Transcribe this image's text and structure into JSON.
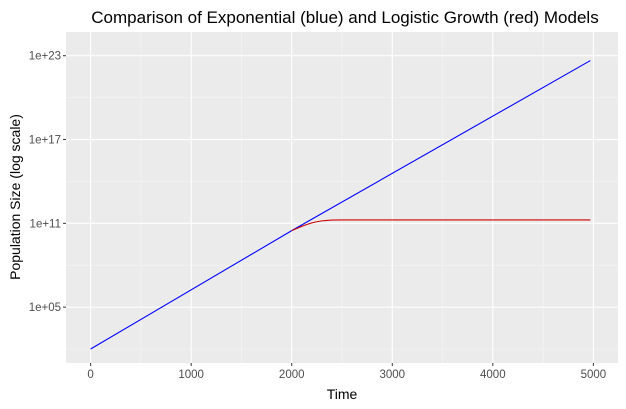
{
  "chart_data": {
    "type": "line",
    "title": "Comparison of Exponential (blue) and Logistic Growth (red) Models",
    "xlabel": "Time",
    "ylabel": "Population Size (log scale)",
    "y_scale": "log10",
    "xlim": [
      -245,
      5245
    ],
    "ylim": [
      10,
      5e+24
    ],
    "x_ticks": [
      0,
      1000,
      2000,
      3000,
      4000,
      5000
    ],
    "x_tick_labels": [
      "0",
      "1000",
      "2000",
      "3000",
      "4000",
      "5000"
    ],
    "y_ticks": [
      100000,
      100000000000,
      100000000000000000,
      1e+23
    ],
    "y_tick_labels": [
      "1e+05",
      "1e+11",
      "1e+17",
      "1e+23"
    ],
    "grid": true,
    "background": "#ebebeb",
    "series": [
      {
        "color": "#0000ff",
        "points": [
          [
            0,
            100
          ],
          [
            2000,
            30000000000.0
          ],
          [
            4970,
            4.5e+22
          ]
        ]
      },
      {
        "color": "#cc0000",
        "points": [
          [
            2000,
            30000000000.0
          ],
          [
            2050,
            43000000000.0
          ],
          [
            2100,
            61000000000.0
          ],
          [
            2150,
            83000000000.0
          ],
          [
            2200,
            108000000000.0
          ],
          [
            2250,
            130000000000.0
          ],
          [
            2300,
            150000000000.0
          ],
          [
            2350,
            162000000000.0
          ],
          [
            2400,
            170000000000.0
          ],
          [
            2500,
            174000000000.0
          ],
          [
            2700,
            175000000000.0
          ],
          [
            3000,
            176000000000.0
          ],
          [
            4000,
            176000000000.0
          ],
          [
            4970,
            176000000000.0
          ]
        ]
      }
    ]
  }
}
